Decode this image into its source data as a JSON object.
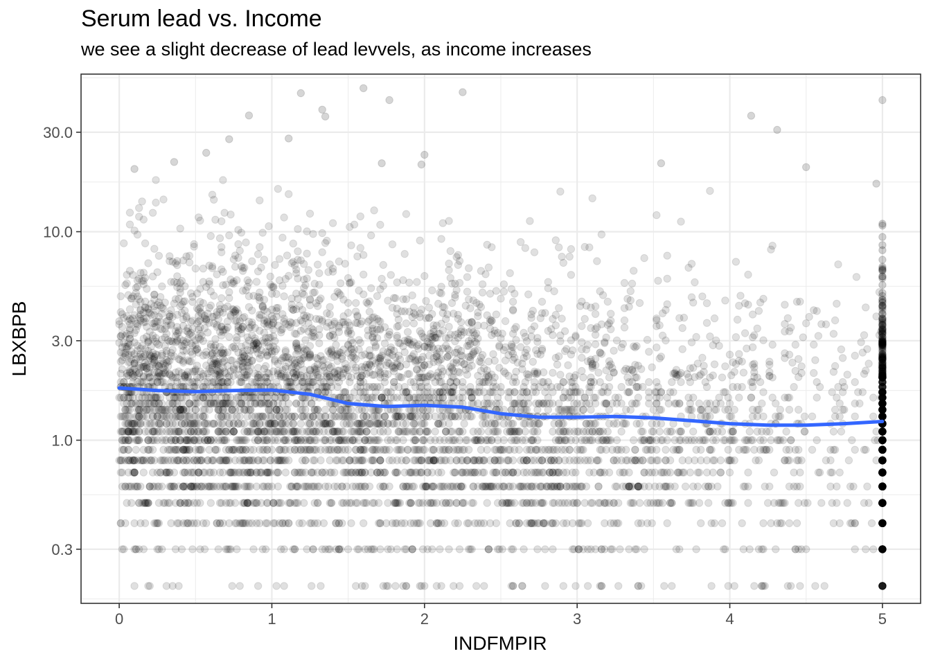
{
  "chart_data": {
    "type": "scatter",
    "title": "Serum lead vs. Income",
    "subtitle": "we see a slight decrease of lead levvels, as income increases",
    "xlabel": "INDFMPIR",
    "ylabel": "LBXBPB",
    "x_scale": "linear",
    "y_scale": "log10",
    "xlim": [
      -0.25,
      5.25
    ],
    "ylim": [
      0.165,
      57
    ],
    "x_ticks": [
      0,
      1,
      2,
      3,
      4,
      5
    ],
    "x_tick_labels": [
      "0",
      "1",
      "2",
      "3",
      "4",
      "5"
    ],
    "y_ticks": [
      0.3,
      1.0,
      3.0,
      10.0,
      30.0
    ],
    "y_tick_labels": [
      "0.3",
      "1.0",
      "3.0",
      "10.0",
      "30.0"
    ],
    "grid": true,
    "legend": "none",
    "point_color": "#000000",
    "point_alpha": 0.12,
    "smooth_color": "#3366FF",
    "smooth_series": {
      "name": "",
      "x": [
        0,
        0.25,
        0.5,
        0.75,
        1.0,
        1.25,
        1.5,
        1.75,
        2.0,
        2.25,
        2.5,
        2.75,
        3.0,
        3.25,
        3.5,
        3.75,
        4.0,
        4.25,
        4.5,
        4.75,
        5.0
      ],
      "y": [
        1.78,
        1.73,
        1.71,
        1.73,
        1.74,
        1.66,
        1.5,
        1.45,
        1.47,
        1.44,
        1.34,
        1.29,
        1.29,
        1.3,
        1.28,
        1.24,
        1.2,
        1.18,
        1.18,
        1.2,
        1.23
      ]
    },
    "outlier_points": [
      {
        "x": 1.6,
        "y": 48.8
      },
      {
        "x": 2.25,
        "y": 46.7
      },
      {
        "x": 1.19,
        "y": 46.2
      },
      {
        "x": 1.77,
        "y": 42.8
      },
      {
        "x": 5.0,
        "y": 42.8
      },
      {
        "x": 1.33,
        "y": 38.5
      },
      {
        "x": 0.85,
        "y": 36.1
      },
      {
        "x": 1.35,
        "y": 35.7
      },
      {
        "x": 4.14,
        "y": 36.0
      },
      {
        "x": 4.31,
        "y": 30.8
      },
      {
        "x": 1.11,
        "y": 28.0
      },
      {
        "x": 0.72,
        "y": 27.8
      },
      {
        "x": 0.57,
        "y": 23.9
      },
      {
        "x": 2.0,
        "y": 23.4
      },
      {
        "x": 0.36,
        "y": 21.6
      },
      {
        "x": 1.98,
        "y": 21.0
      },
      {
        "x": 1.72,
        "y": 21.3
      },
      {
        "x": 3.55,
        "y": 21.3
      },
      {
        "x": 0.1,
        "y": 20.0
      },
      {
        "x": 4.96,
        "y": 17.0
      },
      {
        "x": 4.5,
        "y": 20.4
      }
    ]
  }
}
